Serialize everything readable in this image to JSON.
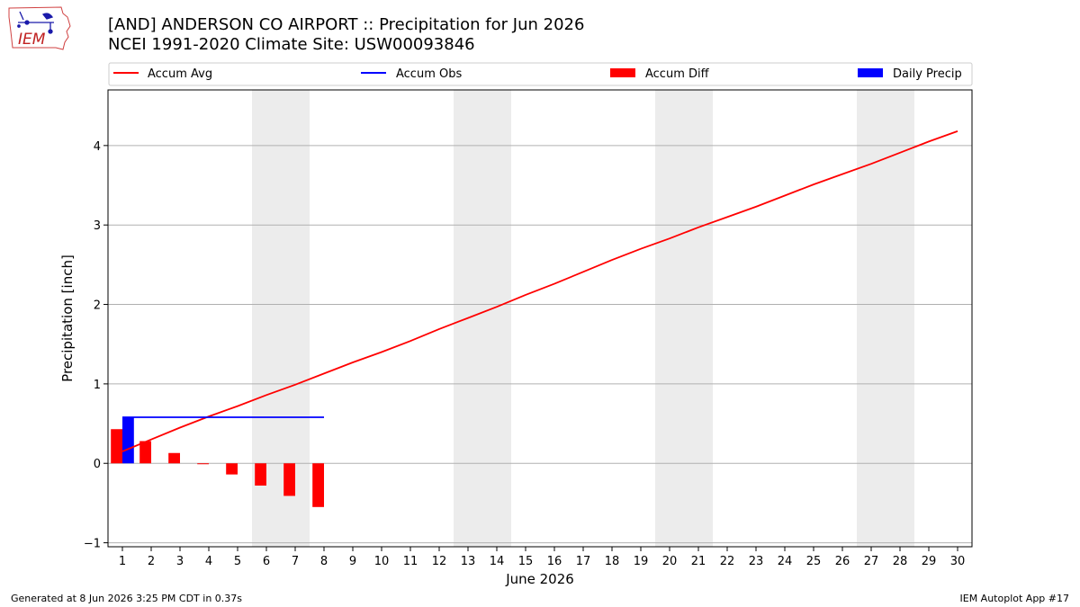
{
  "logo": {
    "text": "IEM"
  },
  "header": {
    "title_line1": "[AND] ANDERSON CO AIRPORT :: Precipitation for Jun 2026",
    "title_line2": "NCEI 1991-2020 Climate Site: USW00093846"
  },
  "footer": {
    "left": "Generated at 8 Jun 2026 3:25 PM CDT in 0.37s",
    "right": "IEM Autoplot App #17"
  },
  "colors": {
    "accum_avg": "#ff0000",
    "accum_obs": "#0000ff",
    "accum_diff": "#ff0000",
    "daily_precip": "#0000ff",
    "weekend_shade": "#ececec",
    "grid": "#b0b0b0"
  },
  "chart_data": {
    "type": "bar+line",
    "xlabel": "June 2026",
    "ylabel": "Precipitation [inch]",
    "xlim": [
      0.5,
      30.5
    ],
    "ylim": [
      -1.05,
      4.7
    ],
    "yticks": [
      -1,
      0,
      1,
      2,
      3,
      4
    ],
    "grid": "horizontal",
    "legend_position": "top",
    "legend": [
      "Accum Avg",
      "Accum Obs",
      "Accum Diff",
      "Daily Precip"
    ],
    "days": [
      1,
      2,
      3,
      4,
      5,
      6,
      7,
      8,
      9,
      10,
      11,
      12,
      13,
      14,
      15,
      16,
      17,
      18,
      19,
      20,
      21,
      22,
      23,
      24,
      25,
      26,
      27,
      28,
      29,
      30
    ],
    "weekend_spans": [
      [
        6,
        7
      ],
      [
        13,
        14
      ],
      [
        20,
        21
      ],
      [
        27,
        28
      ]
    ],
    "series": [
      {
        "name": "Accum Avg",
        "kind": "line",
        "x": [
          1,
          2,
          3,
          4,
          5,
          6,
          7,
          8,
          9,
          10,
          11,
          12,
          13,
          14,
          15,
          16,
          17,
          18,
          19,
          20,
          21,
          22,
          23,
          24,
          25,
          26,
          27,
          28,
          29,
          30
        ],
        "values": [
          0.15,
          0.3,
          0.45,
          0.59,
          0.72,
          0.86,
          0.99,
          1.13,
          1.27,
          1.4,
          1.54,
          1.69,
          1.83,
          1.97,
          2.12,
          2.26,
          2.41,
          2.56,
          2.7,
          2.83,
          2.97,
          3.1,
          3.23,
          3.37,
          3.51,
          3.64,
          3.77,
          3.91,
          4.05,
          4.18
        ]
      },
      {
        "name": "Accum Obs",
        "kind": "line",
        "x": [
          1,
          2,
          3,
          4,
          5,
          6,
          7,
          8
        ],
        "values": [
          0.58,
          0.58,
          0.58,
          0.58,
          0.58,
          0.58,
          0.58,
          0.58
        ]
      },
      {
        "name": "Accum Diff",
        "kind": "bar",
        "x": [
          1,
          2,
          3,
          4,
          5,
          6,
          7,
          8
        ],
        "values": [
          0.43,
          0.28,
          0.13,
          -0.01,
          -0.14,
          -0.28,
          -0.41,
          -0.55
        ]
      },
      {
        "name": "Daily Precip",
        "kind": "bar",
        "x": [
          1
        ],
        "values": [
          0.58
        ]
      }
    ]
  }
}
